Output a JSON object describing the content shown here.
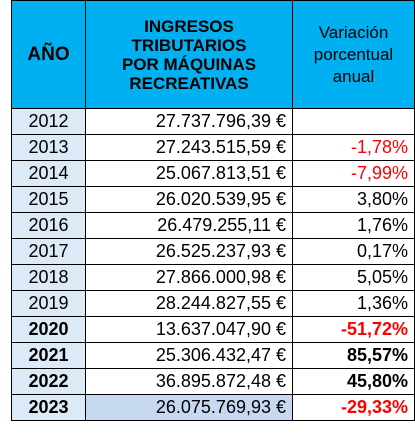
{
  "header": {
    "year": "AÑO",
    "revenue_lines": [
      "INGRESOS",
      "TRIBUTARIOS",
      "POR MÁQUINAS",
      "RECREATIVAS"
    ],
    "variation_lines": [
      "Variación",
      "porcentual",
      "anual"
    ]
  },
  "colors": {
    "header_bg": "#00b0f0",
    "year_bg": "#dce9f6",
    "negative": "#ff0000",
    "highlight": "#c6d9f1"
  },
  "rows": [
    {
      "year": "2012",
      "revenue": "27.737.796,39 €",
      "variation": ""
    },
    {
      "year": "2013",
      "revenue": "27.243.515,59 €",
      "variation": "-1,78%"
    },
    {
      "year": "2014",
      "revenue": "25.067.813,51 €",
      "variation": "-7,99%"
    },
    {
      "year": "2015",
      "revenue": "26.020.539,95 €",
      "variation": "3,80%"
    },
    {
      "year": "2016",
      "revenue": "26.479.255,11 €",
      "variation": "1,76%"
    },
    {
      "year": "2017",
      "revenue": "26.525.237,93 €",
      "variation": "0,17%"
    },
    {
      "year": "2018",
      "revenue": "27.866.000,98 €",
      "variation": "5,05%"
    },
    {
      "year": "2019",
      "revenue": "28.244.827,55 €",
      "variation": "1,36%"
    },
    {
      "year": "2020",
      "revenue": "13.637.047,90 €",
      "variation": "-51,72%"
    },
    {
      "year": "2021",
      "revenue": "25.306.432,47 €",
      "variation": "85,57%"
    },
    {
      "year": "2022",
      "revenue": "36.895.872,48 €",
      "variation": "45,80%"
    },
    {
      "year": "2023",
      "revenue": "26.075.769,93 €",
      "variation": "-29,33%"
    }
  ]
}
